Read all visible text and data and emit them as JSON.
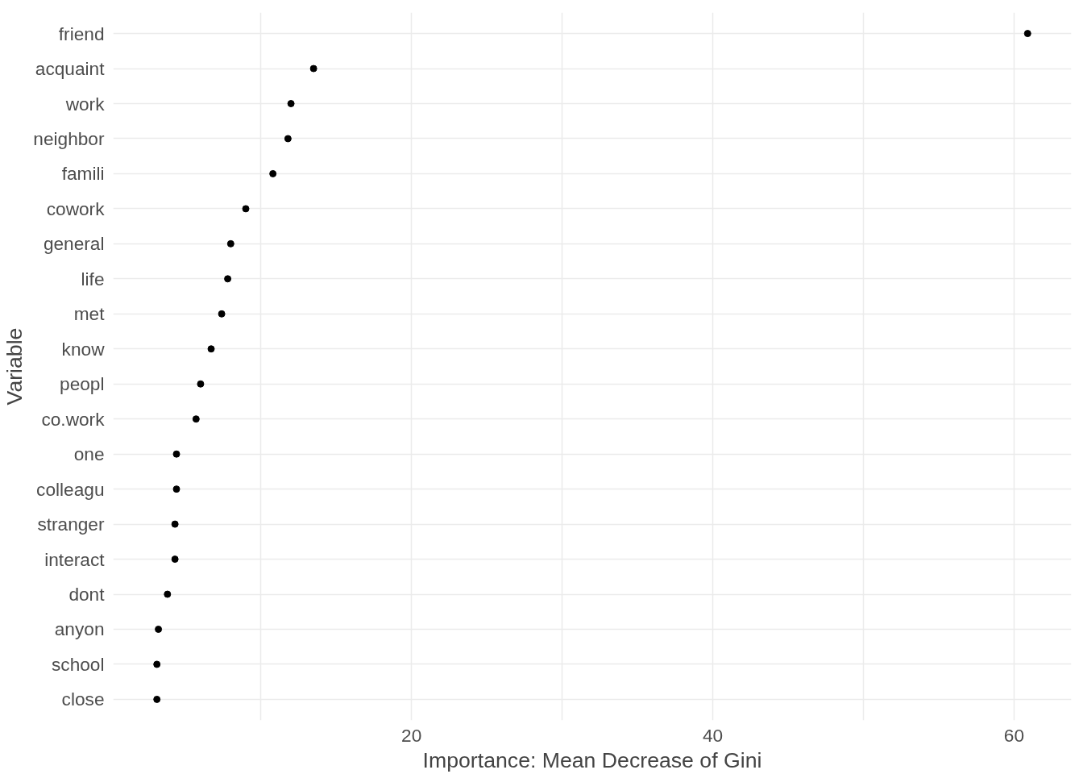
{
  "chart_data": {
    "type": "scatter",
    "xlabel": "Importance: Mean Decrease of Gini",
    "ylabel": "Variable",
    "categories": [
      "friend",
      "acquaint",
      "work",
      "neighbor",
      "famili",
      "cowork",
      "general",
      "life",
      "met",
      "know",
      "peopl",
      "co.work",
      "one",
      "colleagu",
      "stranger",
      "interact",
      "dont",
      "anyon",
      "school",
      "close"
    ],
    "orientation": "horizontal",
    "series": [
      {
        "color": "#000000",
        "values": [
          60.9,
          13.5,
          12.0,
          11.8,
          10.8,
          9.0,
          8.0,
          7.8,
          7.4,
          6.7,
          6.0,
          5.7,
          4.4,
          4.4,
          4.3,
          4.3,
          3.8,
          3.2,
          3.1,
          3.1
        ]
      }
    ],
    "xlim": [
      0.2,
      63.8
    ],
    "xticks": [
      {
        "value": 10,
        "label": null
      },
      20,
      {
        "value": 30,
        "label": null
      },
      40,
      {
        "value": 50,
        "label": null
      },
      60
    ],
    "grid": true,
    "marker": "circle"
  }
}
